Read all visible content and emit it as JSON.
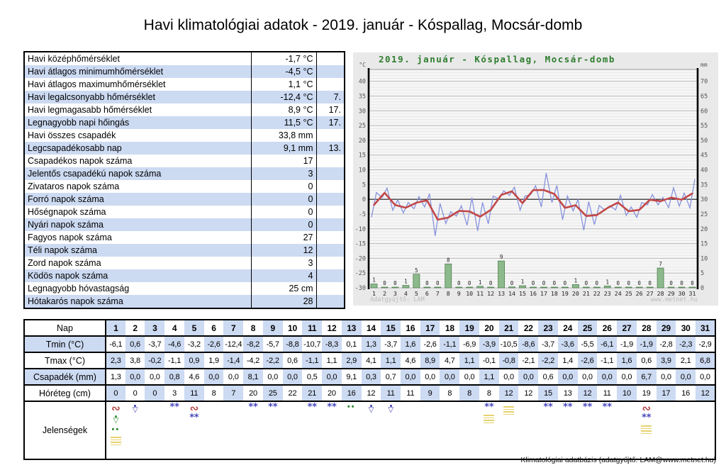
{
  "page": {
    "title": "Havi klimatológiai adatok - 2019. január - Kóspallag, Mocsár-domb",
    "footer": "Klimatológiai adatbázis (adatgyűjtő: LAM@www.metnet.hu)"
  },
  "stats_table": {
    "rows": [
      {
        "label": "Havi középhőmérséklet",
        "value": "-1,7 °C",
        "day": ""
      },
      {
        "label": "Havi átlagos minimumhőmérséklet",
        "value": "-4,5 °C",
        "day": ""
      },
      {
        "label": "Havi átlagos maximumhőmérséklet",
        "value": "1,1 °C",
        "day": ""
      },
      {
        "label": "Havi legalcsonyabb hőmérséklet",
        "value": "-12,4 °C",
        "day": "7."
      },
      {
        "label": "Havi legmagasabb hőmérséklet",
        "value": "8,9 °C",
        "day": "17."
      },
      {
        "label": "Legnagyobb napi hőingás",
        "value": "11,5 °C",
        "day": "17."
      },
      {
        "label": "Havi összes csapadék",
        "value": "33,8 mm",
        "day": ""
      },
      {
        "label": "Legcsapadékosabb nap",
        "value": "9,1 mm",
        "day": "13."
      },
      {
        "label": "Csapadékos napok száma",
        "value": "17",
        "day": ""
      },
      {
        "label": "Jelentős csapadékú napok száma",
        "value": "3",
        "day": ""
      },
      {
        "label": "Zivataros napok száma",
        "value": "0",
        "day": ""
      },
      {
        "label": "Forró napok száma",
        "value": "0",
        "day": ""
      },
      {
        "label": "Hőségnapok száma",
        "value": "0",
        "day": ""
      },
      {
        "label": "Nyári napok száma",
        "value": "0",
        "day": ""
      },
      {
        "label": "Fagyos napok száma",
        "value": "27",
        "day": ""
      },
      {
        "label": "Téli napok száma",
        "value": "12",
        "day": ""
      },
      {
        "label": "Zord napok száma",
        "value": "3",
        "day": ""
      },
      {
        "label": "Ködös napok száma",
        "value": "4",
        "day": ""
      },
      {
        "label": "Legnagyobb hóvastagság",
        "value": "25 cm",
        "day": ""
      },
      {
        "label": "Hótakarós napok száma",
        "value": "28",
        "day": ""
      }
    ]
  },
  "chart_data": {
    "type": "line+bar",
    "title": "2019. január - Kóspallag, Mocsár-domb",
    "left_axis": {
      "unit": "°C",
      "min": -30,
      "max": 40,
      "step": 5
    },
    "right_axis": {
      "unit": "mm",
      "min": 0,
      "max": 70,
      "step": 5
    },
    "days": [
      1,
      2,
      3,
      4,
      5,
      6,
      7,
      8,
      9,
      10,
      11,
      12,
      13,
      14,
      15,
      16,
      17,
      18,
      19,
      20,
      21,
      22,
      23,
      24,
      25,
      26,
      27,
      28,
      29,
      30,
      31
    ],
    "series": [
      {
        "name": "tmin_c",
        "values": [
          -6.1,
          0.6,
          -3.7,
          -4.6,
          -3.2,
          -2.6,
          -12.4,
          -8.2,
          -5.7,
          -8.8,
          -10.7,
          -8.3,
          0.1,
          1.3,
          -3.7,
          1.6,
          -2.6,
          -1.1,
          -6.9,
          -3.9,
          -10.5,
          -8.6,
          -3.7,
          -3.6,
          -5.5,
          -6.1,
          -1.9,
          -1.9,
          -2.8,
          -2.3,
          -2.9
        ]
      },
      {
        "name": "tmax_c",
        "values": [
          2.3,
          3.8,
          -0.2,
          -1.1,
          0.9,
          1.9,
          -1.4,
          -4.2,
          -2.2,
          0.6,
          -1.1,
          1.1,
          2.9,
          4.1,
          1.1,
          4.6,
          8.9,
          4.7,
          1.1,
          -0.1,
          -0.8,
          -2.1,
          -2.2,
          1.4,
          -2.6,
          -1.1,
          1.6,
          0.6,
          3.9,
          2.1,
          6.8
        ]
      },
      {
        "name": "precip_mm",
        "values": [
          1.3,
          0.0,
          0.0,
          0.8,
          4.6,
          0.0,
          0.0,
          8.1,
          0.0,
          0.0,
          0.5,
          0.0,
          9.1,
          0.3,
          0.7,
          0.0,
          0.0,
          0.0,
          0.0,
          1.1,
          0.0,
          0.0,
          0.6,
          0.0,
          0.0,
          0.0,
          0.0,
          6.7,
          0.0,
          0.0,
          0.0
        ]
      },
      {
        "name": "snow_depth_cm",
        "values": [
          0,
          0,
          0,
          3,
          11,
          8,
          7,
          20,
          25,
          22,
          21,
          20,
          16,
          12,
          11,
          11,
          9,
          8,
          8,
          8,
          12,
          12,
          15,
          13,
          12,
          11,
          10,
          19,
          17,
          16,
          12
        ]
      }
    ],
    "bar_labels": [
      1,
      0,
      0,
      1,
      5,
      0,
      0,
      8,
      0,
      0,
      1,
      0,
      9,
      0,
      1,
      0,
      0,
      0,
      0,
      1,
      0,
      0,
      1,
      0,
      0,
      0,
      0,
      7,
      0,
      0,
      0
    ],
    "watermark_left": "Adatgyűjtő: LAM",
    "watermark_right": "www.metnet.hu",
    "colors": {
      "title": "#2e7d2e",
      "temp_line": "#8893dd",
      "mean_line": "#c24848",
      "bar_fill": "#8cba8c",
      "bar_stroke": "#4e7e4e",
      "plot_bg": "#f6f6f6",
      "grid_minor": "#e2e2e2",
      "grid_major": "#b8b8b8",
      "axis": "#000000",
      "tick_text": "#555555",
      "watermark": "#bcbcbc"
    },
    "legend": "none",
    "grid": true
  },
  "daily_table": {
    "row_labels": [
      "Nap",
      "Tmin (°C)",
      "Tmax (°C)",
      "Csapadék (mm)",
      "Hóréteg (cm)",
      "Jelenségek"
    ],
    "shade_color": "#ccdaf2"
  },
  "phenomena": [
    {
      "day": 1,
      "symbols": [
        "freezing-rain",
        "rain-shower",
        "drizzle",
        "fog"
      ]
    },
    {
      "day": 2,
      "symbols": [
        "snow-shower"
      ]
    },
    {
      "day": 4,
      "symbols": [
        "snow"
      ]
    },
    {
      "day": 5,
      "symbols": [
        "freezing-rain",
        "snow"
      ]
    },
    {
      "day": 8,
      "symbols": [
        "snow"
      ]
    },
    {
      "day": 9,
      "symbols": [
        "snow"
      ]
    },
    {
      "day": 11,
      "symbols": [
        "snow"
      ]
    },
    {
      "day": 12,
      "symbols": [
        "snow"
      ]
    },
    {
      "day": 13,
      "symbols": [
        "drizzle"
      ]
    },
    {
      "day": 14,
      "symbols": [
        "snow-shower"
      ]
    },
    {
      "day": 15,
      "symbols": [
        "snow-shower"
      ]
    },
    {
      "day": 20,
      "symbols": [
        "snow",
        "fog"
      ]
    },
    {
      "day": 21,
      "symbols": [
        "fog"
      ]
    },
    {
      "day": 23,
      "symbols": [
        "snow"
      ]
    },
    {
      "day": 24,
      "symbols": [
        "snow"
      ]
    },
    {
      "day": 25,
      "symbols": [
        "snow"
      ]
    },
    {
      "day": 26,
      "symbols": [
        "snow"
      ]
    },
    {
      "day": 28,
      "symbols": [
        "freezing-rain",
        "snow",
        "fog"
      ]
    }
  ]
}
